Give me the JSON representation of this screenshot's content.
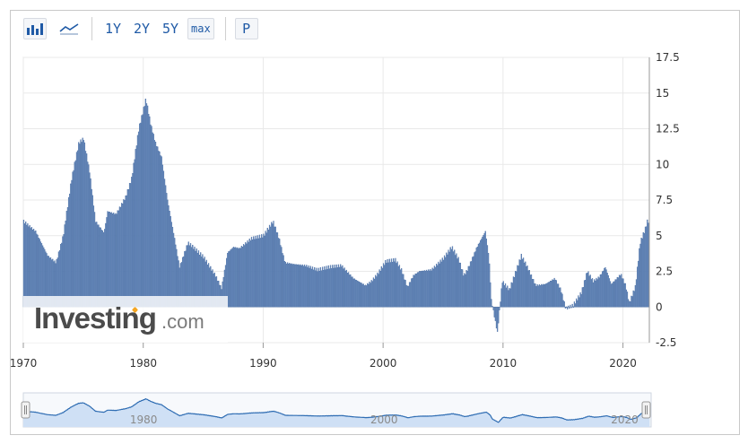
{
  "toolbar": {
    "bar_chart_icon": "bar-chart-icon",
    "line_chart_icon": "line-chart-icon",
    "range_1y": "1Y",
    "range_2y": "2Y",
    "range_5y": "5Y",
    "range_max": "max",
    "print_label": "P"
  },
  "watermark": {
    "brand": "Investing",
    "suffix": ".com"
  },
  "navigator": {
    "labels": [
      "1980",
      "2000",
      "2020"
    ]
  },
  "colors": {
    "bar": "#6e8fbf",
    "bar_edge": "#4a6fa5",
    "grid": "#e9e9e9",
    "navigator_fill": "#cfe0f5",
    "navigator_line": "#2f6db3"
  },
  "chart_data": {
    "type": "bar",
    "title": "",
    "xlabel": "",
    "ylabel": "",
    "x_range": [
      1970,
      2022.2
    ],
    "ylim": [
      -2.5,
      17.5
    ],
    "y_ticks": [
      "17.5",
      "15",
      "12.5",
      "10",
      "7.5",
      "5",
      "2.5",
      "0",
      "-2.5"
    ],
    "x_ticks": [
      "1970",
      "1980",
      "1990",
      "2000",
      "2010",
      "2020"
    ],
    "grid": true,
    "legend": "none",
    "anchors": [
      [
        1970.0,
        6.0
      ],
      [
        1971.0,
        5.3
      ],
      [
        1972.0,
        3.6
      ],
      [
        1972.7,
        3.1
      ],
      [
        1973.3,
        5.0
      ],
      [
        1974.0,
        9.0
      ],
      [
        1974.6,
        11.5
      ],
      [
        1975.0,
        11.8
      ],
      [
        1975.5,
        9.5
      ],
      [
        1976.0,
        6.0
      ],
      [
        1976.7,
        5.2
      ],
      [
        1977.0,
        6.7
      ],
      [
        1977.7,
        6.5
      ],
      [
        1978.5,
        7.7
      ],
      [
        1979.0,
        9.0
      ],
      [
        1979.6,
        12.5
      ],
      [
        1980.2,
        14.6
      ],
      [
        1980.6,
        12.8
      ],
      [
        1981.0,
        11.5
      ],
      [
        1981.5,
        10.5
      ],
      [
        1982.0,
        7.5
      ],
      [
        1982.5,
        5.2
      ],
      [
        1983.0,
        2.8
      ],
      [
        1983.7,
        4.5
      ],
      [
        1984.0,
        4.3
      ],
      [
        1985.0,
        3.5
      ],
      [
        1986.0,
        2.2
      ],
      [
        1986.5,
        1.3
      ],
      [
        1987.0,
        3.8
      ],
      [
        1987.5,
        4.2
      ],
      [
        1988.0,
        4.1
      ],
      [
        1989.0,
        4.8
      ],
      [
        1990.0,
        5.0
      ],
      [
        1990.8,
        6.0
      ],
      [
        1991.3,
        4.8
      ],
      [
        1991.8,
        3.1
      ],
      [
        1992.5,
        3.0
      ],
      [
        1993.5,
        2.9
      ],
      [
        1994.5,
        2.6
      ],
      [
        1995.5,
        2.8
      ],
      [
        1996.5,
        2.9
      ],
      [
        1997.5,
        2.0
      ],
      [
        1998.5,
        1.5
      ],
      [
        1999.0,
        1.8
      ],
      [
        1999.5,
        2.3
      ],
      [
        2000.2,
        3.2
      ],
      [
        2001.0,
        3.3
      ],
      [
        2001.5,
        2.6
      ],
      [
        2002.0,
        1.4
      ],
      [
        2002.5,
        2.2
      ],
      [
        2003.0,
        2.5
      ],
      [
        2004.0,
        2.6
      ],
      [
        2005.0,
        3.4
      ],
      [
        2005.7,
        4.2
      ],
      [
        2006.3,
        3.3
      ],
      [
        2006.7,
        2.2
      ],
      [
        2007.0,
        2.6
      ],
      [
        2007.8,
        4.2
      ],
      [
        2008.5,
        5.3
      ],
      [
        2008.8,
        3.5
      ],
      [
        2009.0,
        0.5
      ],
      [
        2009.5,
        -1.8
      ],
      [
        2009.9,
        1.8
      ],
      [
        2010.5,
        1.2
      ],
      [
        2011.5,
        3.6
      ],
      [
        2012.0,
        2.8
      ],
      [
        2012.7,
        1.5
      ],
      [
        2013.5,
        1.6
      ],
      [
        2014.3,
        2.0
      ],
      [
        2014.8,
        1.2
      ],
      [
        2015.2,
        -0.1
      ],
      [
        2015.8,
        0.1
      ],
      [
        2016.5,
        1.0
      ],
      [
        2017.0,
        2.5
      ],
      [
        2017.5,
        1.8
      ],
      [
        2018.0,
        2.1
      ],
      [
        2018.5,
        2.8
      ],
      [
        2019.0,
        1.6
      ],
      [
        2019.8,
        2.3
      ],
      [
        2020.2,
        1.5
      ],
      [
        2020.5,
        0.3
      ],
      [
        2021.0,
        1.4
      ],
      [
        2021.4,
        4.5
      ],
      [
        2021.8,
        5.4
      ],
      [
        2022.0,
        6.0
      ]
    ]
  }
}
